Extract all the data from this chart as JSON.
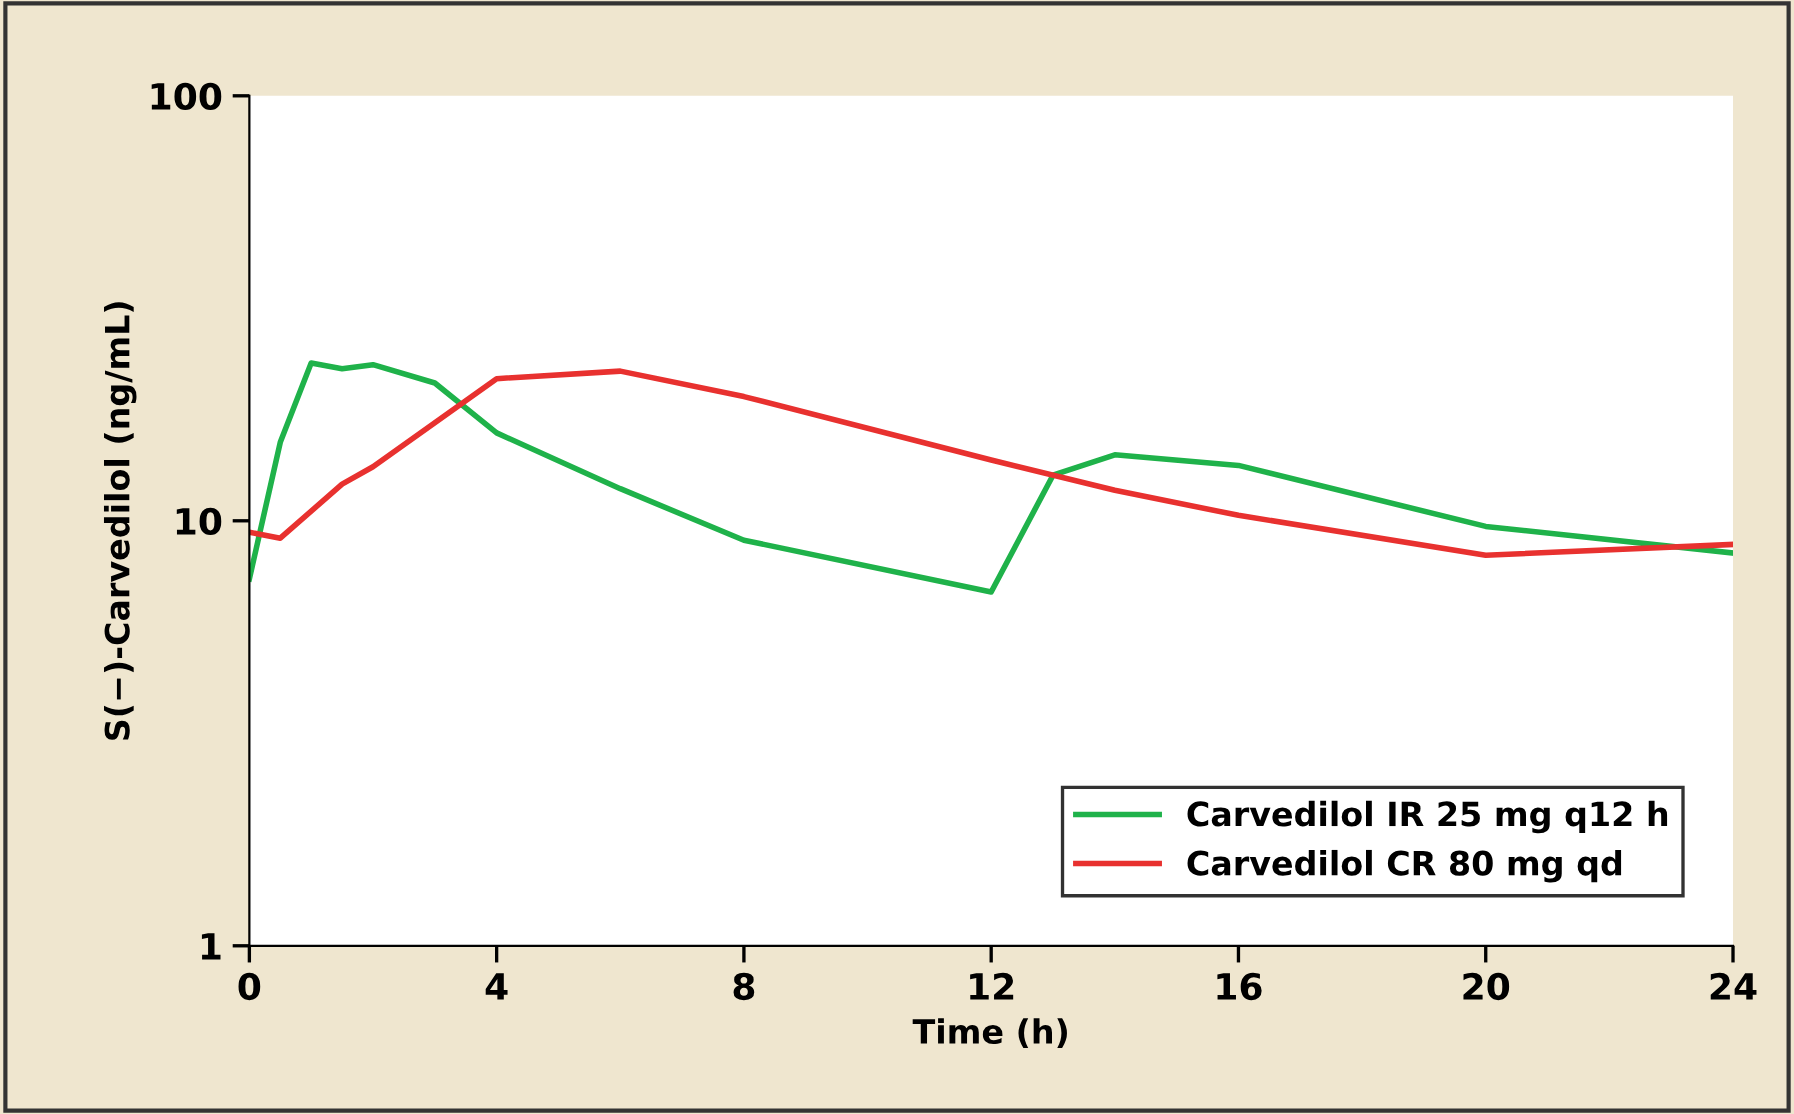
{
  "chart_data": {
    "type": "line",
    "xlabel": "Time (h)",
    "ylabel": "S(−)-Carvedilol (ng/mL)",
    "log": "y",
    "xlim": [
      0,
      24
    ],
    "xticks": [
      0,
      4,
      8,
      12,
      16,
      20,
      24
    ],
    "ylim": [
      1,
      100
    ],
    "yticks": [
      1,
      10,
      100
    ],
    "legend": "bottom right",
    "grid": false,
    "marker": "none",
    "line_style": "solid",
    "series": [
      {
        "name": "Carvedilol IR 25 mg q12 h",
        "color": "#1fb24a",
        "x": [
          0,
          0.5,
          1,
          1.5,
          2,
          3,
          4,
          6,
          8,
          12,
          13,
          14,
          16,
          20,
          24
        ],
        "values": [
          7.3,
          15.3,
          23.5,
          22.8,
          23.3,
          21.1,
          16.1,
          11.9,
          9.0,
          6.8,
          12.8,
          14.3,
          13.5,
          9.7,
          8.4
        ]
      },
      {
        "name": "Carvedilol CR 80 mg qd",
        "color": "#e8312f",
        "x": [
          0,
          0.5,
          1.5,
          2,
          4,
          6,
          8,
          12,
          14,
          16,
          20,
          24
        ],
        "values": [
          9.4,
          9.1,
          12.2,
          13.4,
          21.6,
          22.5,
          19.6,
          13.9,
          11.8,
          10.3,
          8.3,
          8.8
        ]
      }
    ]
  }
}
